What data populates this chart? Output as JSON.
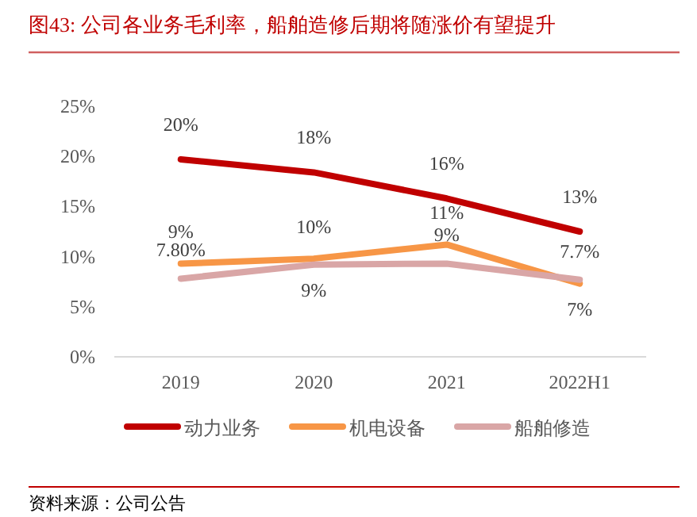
{
  "chart_data": {
    "type": "line",
    "title": "图43:  公司各业务毛利率，船舶造修后期将随涨价有望提升",
    "categories": [
      "2019",
      "2020",
      "2021",
      "2022H1"
    ],
    "series": [
      {
        "name": "动力业务",
        "color": "#c00000",
        "values": [
          19.7,
          18.4,
          15.8,
          12.5
        ],
        "value_labels": [
          "20%",
          "18%",
          "16%",
          "13%"
        ]
      },
      {
        "name": "机电设备",
        "color": "#f79646",
        "values": [
          9.3,
          9.8,
          11.2,
          7.3
        ],
        "value_labels": [
          "9%",
          "10%",
          "11%",
          "7%"
        ]
      },
      {
        "name": "船舶修造",
        "color": "#d9a6a6",
        "values": [
          7.8,
          9.2,
          9.3,
          7.7
        ],
        "value_labels": [
          "7.80%",
          "9%",
          "9%",
          "7.7%"
        ]
      }
    ],
    "ylim": [
      0,
      25
    ],
    "yticks": [
      {
        "value": 0,
        "label": "0%"
      },
      {
        "value": 5,
        "label": "5%"
      },
      {
        "value": 10,
        "label": "10%"
      },
      {
        "value": 15,
        "label": "15%"
      },
      {
        "value": 20,
        "label": "20%"
      },
      {
        "value": 25,
        "label": "25%"
      }
    ],
    "grid": false,
    "legend": "bottom",
    "marker": "none",
    "line_style": "solid",
    "annotations": [
      "资料来源：公司公告"
    ]
  }
}
